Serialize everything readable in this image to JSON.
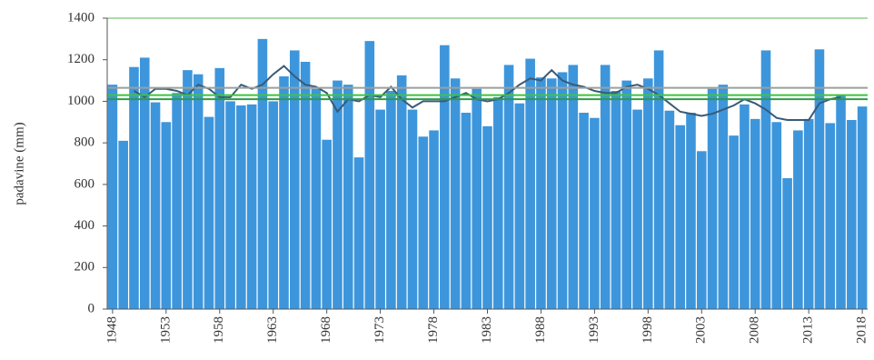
{
  "chart_data": {
    "type": "bar",
    "y_label": "padavine (mm)",
    "categories": [
      "1948",
      null,
      null,
      null,
      null,
      "1953",
      null,
      null,
      null,
      null,
      "1958",
      null,
      null,
      null,
      null,
      "1963",
      null,
      null,
      null,
      null,
      "1968",
      null,
      null,
      null,
      null,
      "1973",
      null,
      null,
      null,
      null,
      "1978",
      null,
      null,
      null,
      null,
      "1983",
      null,
      null,
      null,
      null,
      "1988",
      null,
      null,
      null,
      null,
      "1993",
      null,
      null,
      null,
      null,
      "1998",
      null,
      null,
      null,
      null,
      "2003",
      null,
      null,
      null,
      null,
      "2008",
      null,
      null,
      null,
      null,
      "2013",
      null,
      null,
      null,
      null,
      "2018"
    ],
    "series": [
      {
        "color": "#3d96dc",
        "values": [
          1080,
          810,
          1165,
          1210,
          995,
          900,
          1040,
          1150,
          1130,
          925,
          1160,
          1000,
          980,
          985,
          1300,
          1000,
          1120,
          1245,
          1190,
          1060,
          815,
          1100,
          1080,
          730,
          1290,
          960,
          1050,
          1125,
          960,
          830,
          860,
          1270,
          1110,
          945,
          1060,
          880,
          1020,
          1175,
          990,
          1205,
          1115,
          1110,
          1140,
          1175,
          945,
          920,
          1175,
          1050,
          1100,
          960,
          1110,
          1245,
          955,
          885,
          945,
          760,
          1060,
          1080,
          835,
          985,
          915,
          1245,
          900,
          630,
          860,
          915,
          1250,
          895,
          1030,
          910,
          975
        ]
      },
      {
        "type": "line",
        "color": "#3a5a78",
        "values": [
          null,
          null,
          1050,
          1020,
          1060,
          1060,
          1050,
          1030,
          1080,
          1060,
          1020,
          1020,
          1080,
          1060,
          1080,
          1130,
          1170,
          1120,
          1080,
          1070,
          1040,
          950,
          1010,
          1000,
          1030,
          1020,
          1070,
          1010,
          970,
          1000,
          1000,
          1000,
          1020,
          1040,
          1010,
          1000,
          1010,
          1040,
          1080,
          1110,
          1100,
          1150,
          1100,
          1080,
          1070,
          1050,
          1040,
          1040,
          1070,
          1080,
          1060,
          1030,
          990,
          950,
          940,
          930,
          940,
          960,
          980,
          1010,
          990,
          960,
          920,
          910,
          910,
          910,
          990,
          1010,
          1020,
          null,
          null
        ]
      }
    ],
    "reference_lines": [
      {
        "value": 1065,
        "color": "#9aa09a"
      },
      {
        "value": 1030,
        "color": "#3cc43c"
      },
      {
        "value": 1010,
        "color": "#2e9a4a"
      }
    ],
    "ylim": [
      0,
      1400
    ],
    "yticks": [
      0,
      200,
      400,
      600,
      800,
      1000,
      1200,
      1400
    ],
    "grid": false
  }
}
